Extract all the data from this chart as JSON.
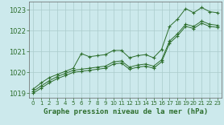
{
  "title": "Graphe pression niveau de la mer (hPa)",
  "bg_color": "#cce9ec",
  "grid_color": "#aacccc",
  "line_color": "#2d6e2d",
  "xlim": [
    -0.5,
    23.5
  ],
  "ylim": [
    1018.8,
    1023.4
  ],
  "yticks": [
    1019,
    1020,
    1021,
    1022,
    1023
  ],
  "xticks": [
    0,
    1,
    2,
    3,
    4,
    5,
    6,
    7,
    8,
    9,
    10,
    11,
    12,
    13,
    14,
    15,
    16,
    17,
    18,
    19,
    20,
    21,
    22,
    23
  ],
  "series": {
    "line1": [
      1019.2,
      1019.5,
      1019.75,
      1019.9,
      1020.05,
      1020.2,
      1020.9,
      1020.75,
      1020.8,
      1020.85,
      1021.05,
      1021.05,
      1020.7,
      1020.8,
      1020.85,
      1020.7,
      1021.1,
      1022.2,
      1022.55,
      1023.05,
      1022.85,
      1023.1,
      1022.9,
      1022.85
    ],
    "line2": [
      1019.1,
      1019.35,
      1019.6,
      1019.8,
      1019.95,
      1020.1,
      1020.15,
      1020.2,
      1020.25,
      1020.3,
      1020.5,
      1020.55,
      1020.25,
      1020.35,
      1020.4,
      1020.3,
      1020.6,
      1021.5,
      1021.85,
      1022.3,
      1022.2,
      1022.45,
      1022.3,
      1022.25
    ],
    "line3": [
      1019.0,
      1019.25,
      1019.5,
      1019.7,
      1019.85,
      1020.0,
      1020.05,
      1020.1,
      1020.15,
      1020.2,
      1020.4,
      1020.45,
      1020.15,
      1020.25,
      1020.3,
      1020.2,
      1020.5,
      1021.4,
      1021.75,
      1022.2,
      1022.1,
      1022.35,
      1022.2,
      1022.15
    ]
  }
}
